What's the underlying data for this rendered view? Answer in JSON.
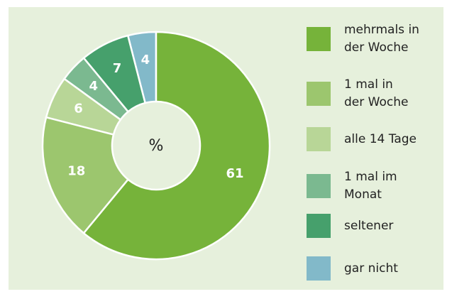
{
  "chart_data": {
    "type": "donut",
    "center_label": "%",
    "categories": [
      "mehrmals in\nder Woche",
      "1 mal in\nder Woche",
      "alle 14 Tage",
      "1 mal im\nMonat",
      "seltener",
      "gar nicht"
    ],
    "values": [
      61,
      18,
      6,
      4,
      7,
      4
    ],
    "colors": [
      "#76b33a",
      "#9cc66e",
      "#b8d697",
      "#7bb990",
      "#46a06c",
      "#82b9c9"
    ],
    "legend": "right"
  }
}
